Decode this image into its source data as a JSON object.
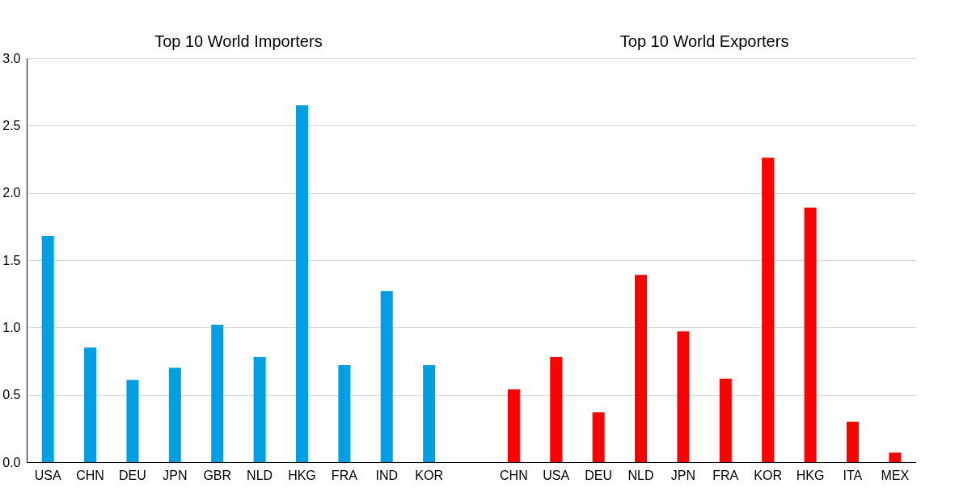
{
  "chart_data": {
    "type": "bar",
    "categories": [
      "USA",
      "CHN",
      "DEU",
      "JPN",
      "GBR",
      "NLD",
      "HKG",
      "FRA",
      "IND",
      "KOR",
      null,
      "CHN",
      "USA",
      "DEU",
      "NLD",
      "JPN",
      "FRA",
      "KOR",
      "HKG",
      "ITA",
      "MEX"
    ],
    "series": [
      {
        "color": "#009fe3",
        "values": [
          1.68,
          0.85,
          0.61,
          0.7,
          1.02,
          0.78,
          2.65,
          0.72,
          1.27,
          0.72,
          null,
          null,
          null,
          null,
          null,
          null,
          null,
          null,
          null,
          null,
          null
        ]
      },
      {
        "color": "#ff0000",
        "values": [
          null,
          null,
          null,
          null,
          null,
          null,
          null,
          null,
          null,
          null,
          null,
          0.54,
          0.78,
          0.37,
          1.39,
          0.97,
          0.62,
          2.26,
          1.89,
          0.3,
          0.07
        ]
      }
    ],
    "annotations": [
      "Top 10 World Importers",
      "Top 10 World Exporters"
    ],
    "ylim": [
      0,
      3.0
    ],
    "yticks": [
      {
        "value": 0,
        "label": "0.0"
      },
      {
        "value": 0.5,
        "label": "0.5"
      },
      {
        "value": 1.0,
        "label": "1.0"
      },
      {
        "value": 1.5,
        "label": "1.5"
      },
      {
        "value": 2.0,
        "label": "2.0"
      },
      {
        "value": 2.5,
        "label": "2.5"
      },
      {
        "value": 3.0,
        "label": "3.0"
      }
    ],
    "grid": "y"
  }
}
